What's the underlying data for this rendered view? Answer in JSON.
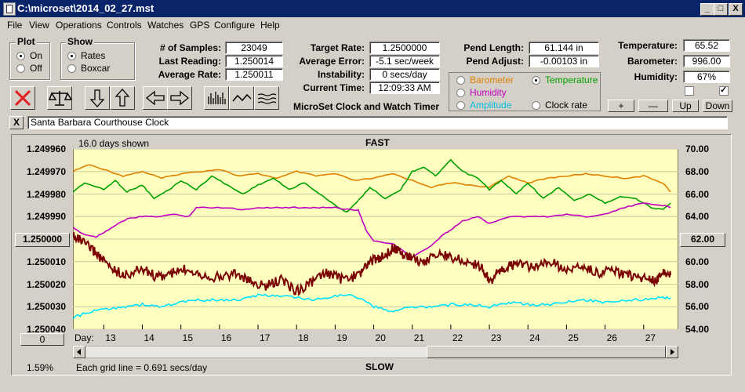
{
  "window": {
    "title": "C:\\microset\\2014_02_27.mst",
    "minimize": "_",
    "maximize": "□",
    "close": "X"
  },
  "menu": [
    "File",
    "View",
    "Operations",
    "Controls",
    "Watches",
    "GPS",
    "Configure",
    "Help"
  ],
  "plot_group": {
    "title": "Plot",
    "options": [
      {
        "label": "On",
        "selected": true
      },
      {
        "label": "Off",
        "selected": false
      }
    ]
  },
  "show_group": {
    "title": "Show",
    "options": [
      {
        "label": "Rates",
        "selected": true
      },
      {
        "label": "Boxcar",
        "selected": false
      }
    ]
  },
  "stats": {
    "samples_label": "# of Samples:",
    "samples": "23049",
    "last_label": "Last Reading:",
    "last": "1.250014",
    "avg_label": "Average Rate:",
    "avg": "1.250011"
  },
  "rates": {
    "target_label": "Target Rate:",
    "target": "1.2500000",
    "error_label": "Average Error:",
    "error": "-5.1 sec/week",
    "instab_label": "Instability:",
    "instab": "0 secs/day",
    "time_label": "Current Time:",
    "time": "12:09:33 AM",
    "caption": "MicroSet Clock and Watch Timer"
  },
  "pendulum": {
    "length_label": "Pend Length:",
    "length": "61.144 in",
    "adjust_label": "Pend Adjust:",
    "adjust": "-0.00103 in"
  },
  "series_select": {
    "barometer": "Barometer",
    "temperature": "Temperature",
    "humidity": "Humidity",
    "amplitude": "Amplitude",
    "clockrate": "Clock rate",
    "colors": {
      "barometer": "#e08000",
      "temperature": "#00a000",
      "humidity": "#c000c0",
      "amplitude": "#00c0e0",
      "clockrate": "#000000"
    }
  },
  "env": {
    "temp_label": "Temperature:",
    "temp": "65.52",
    "baro_label": "Barometer:",
    "baro": "996.00",
    "hum_label": "Humidity:",
    "hum": "67%"
  },
  "env_buttons": {
    "plus": "+",
    "minus": "—",
    "up": "Up",
    "down": "Down"
  },
  "toolbar_icons": [
    "clear-icon",
    "balance-icon",
    "arrow-down-icon",
    "arrow-up-icon",
    "arrow-left-icon",
    "arrow-right-icon",
    "bars-icon",
    "wave-icon",
    "lines-icon"
  ],
  "description": {
    "close": "X",
    "text": "Santa Barbara Courthouse Clock"
  },
  "chart": {
    "days_shown": "16.0 days shown",
    "top_label": "FAST",
    "bottom_label": "SLOW",
    "center_button": "1.250000",
    "right_button": "62.00",
    "left_bottom_button": "0",
    "percent": "1.59%",
    "grid_note": "Each grid line = 0.691 secs/day",
    "day_prefix": "Day:",
    "plot_bg": "#ffffc0"
  },
  "chart_data": {
    "type": "line",
    "x_label": "Day:",
    "x_ticks": [
      "13",
      "14",
      "15",
      "16",
      "17",
      "18",
      "19",
      "20",
      "21",
      "22",
      "23",
      "24",
      "25",
      "26",
      "27"
    ],
    "xlim": [
      12.2,
      27.9
    ],
    "y_left_ticks": [
      "1.249960",
      "1.249970",
      "1.249980",
      "1.249990",
      "1.250000",
      "1.250010",
      "1.250020",
      "1.250030",
      "1.250040"
    ],
    "y_left_lim": [
      1.24996,
      1.25004
    ],
    "y_left_inverted": true,
    "y_right_ticks": [
      "70.00",
      "68.00",
      "66.00",
      "64.00",
      "62.00",
      "60.00",
      "58.00",
      "56.00",
      "54.00"
    ],
    "y_right_lim": [
      54,
      70
    ],
    "grid": true,
    "series": [
      {
        "name": "Barometer",
        "color": "#e08000",
        "axis": "left",
        "x": [
          12.2,
          12.6,
          13,
          13.5,
          14,
          14.5,
          15,
          15.5,
          16,
          16.5,
          17,
          17.5,
          18,
          18.5,
          19,
          19.5,
          20,
          20.5,
          21,
          21.5,
          22,
          22.5,
          23,
          23.5,
          24,
          24.5,
          25,
          25.5,
          26,
          26.5,
          27,
          27.5,
          27.7
        ],
        "y": [
          1.24997,
          1.249967,
          1.249969,
          1.249972,
          1.24997,
          1.249973,
          1.249971,
          1.24997,
          1.249969,
          1.249972,
          1.249971,
          1.249973,
          1.24997,
          1.249972,
          1.249971,
          1.249974,
          1.249973,
          1.249971,
          1.249974,
          1.249977,
          1.249975,
          1.249976,
          1.249977,
          1.249972,
          1.249975,
          1.249973,
          1.249972,
          1.249971,
          1.249972,
          1.249973,
          1.249972,
          1.249975,
          1.249979
        ]
      },
      {
        "name": "Temperature",
        "color": "#00a000",
        "axis": "left",
        "x": [
          12.2,
          12.5,
          13,
          13.3,
          13.6,
          14,
          14.3,
          14.7,
          15,
          15.4,
          15.8,
          16.2,
          16.6,
          17,
          17.4,
          17.8,
          18.2,
          18.6,
          19,
          19.3,
          19.6,
          19.9,
          20.3,
          20.7,
          21,
          21.3,
          21.6,
          22,
          22.3,
          22.7,
          23,
          23.3,
          23.7,
          24,
          24.4,
          24.8,
          25.2,
          25.6,
          26,
          26.4,
          26.8,
          27.2,
          27.5,
          27.7
        ],
        "y": [
          1.249979,
          1.249975,
          1.249978,
          1.249974,
          1.249979,
          1.249976,
          1.249982,
          1.249978,
          1.249974,
          1.249978,
          1.249972,
          1.249976,
          1.24998,
          1.249976,
          1.249973,
          1.249978,
          1.249975,
          1.24998,
          1.249985,
          1.249988,
          1.249983,
          1.249977,
          1.249982,
          1.249978,
          1.24997,
          1.249968,
          1.249972,
          1.249965,
          1.24997,
          1.249973,
          1.249978,
          1.249974,
          1.24998,
          1.249975,
          1.249982,
          1.249977,
          1.249983,
          1.24998,
          1.249984,
          1.249981,
          1.249982,
          1.249986,
          1.249987,
          1.249984
        ]
      },
      {
        "name": "Humidity",
        "color": "#c000c0",
        "axis": "left",
        "x": [
          12.2,
          12.5,
          12.8,
          13,
          13.3,
          13.6,
          14,
          14.4,
          14.8,
          15.2,
          15.4,
          15.8,
          16.2,
          16.6,
          17,
          17.4,
          17.8,
          18.2,
          18.6,
          19,
          19.4,
          19.6,
          19.8,
          20,
          20.5,
          21,
          21.5,
          21.8,
          22,
          22.3,
          22.7,
          23,
          23.5,
          24,
          24.5,
          25,
          25.5,
          26,
          26.5,
          27,
          27.5,
          27.7
        ],
        "y": [
          1.249995,
          1.249998,
          1.249999,
          1.249997,
          1.249994,
          1.249991,
          1.24999,
          1.24999,
          1.249989,
          1.24999,
          1.249986,
          1.249986,
          1.249986,
          1.249987,
          1.249986,
          1.249986,
          1.249986,
          1.249986,
          1.249986,
          1.249986,
          1.249987,
          1.249987,
          1.249996,
          1.250001,
          1.250002,
          1.250008,
          1.250003,
          1.249998,
          1.249996,
          1.249992,
          1.24999,
          1.249993,
          1.24999,
          1.24999,
          1.24999,
          1.249989,
          1.24999,
          1.249989,
          1.249986,
          1.249984,
          1.249985,
          1.249986
        ]
      },
      {
        "name": "Clock rate",
        "color": "#7a0000",
        "axis": "left",
        "x": [
          12.2,
          12.5,
          12.8,
          13,
          13.3,
          13.6,
          14,
          14.4,
          14.8,
          15.2,
          15.6,
          16,
          16.4,
          16.8,
          17.2,
          17.6,
          18,
          18.4,
          18.8,
          19.2,
          19.6,
          19.9,
          20.2,
          20.5,
          20.8,
          21,
          21.3,
          21.6,
          22,
          22.4,
          22.8,
          23,
          23.2,
          23.5,
          23.8,
          24.2,
          24.6,
          25,
          25.4,
          25.8,
          26.2,
          26.6,
          27,
          27.3,
          27.5,
          27.7
        ],
        "y": [
          1.249998,
          1.250002,
          1.250006,
          1.25001,
          1.250014,
          1.250016,
          1.250013,
          1.250017,
          1.250015,
          1.250013,
          1.250016,
          1.250017,
          1.250015,
          1.250019,
          1.250021,
          1.250018,
          1.250023,
          1.250019,
          1.250015,
          1.250018,
          1.250016,
          1.25001,
          1.250008,
          1.250004,
          1.250007,
          1.250008,
          1.250011,
          1.250006,
          1.250008,
          1.25001,
          1.250012,
          1.250019,
          1.250015,
          1.250012,
          1.250011,
          1.250013,
          1.25001,
          1.250014,
          1.250012,
          1.250015,
          1.250014,
          1.250016,
          1.250017,
          1.250019,
          1.250015,
          1.250016
        ]
      },
      {
        "name": "Amplitude",
        "color": "#00e0ff",
        "axis": "left",
        "x": [
          12.2,
          12.5,
          13,
          13.5,
          14,
          14.5,
          15,
          15.5,
          16,
          16.5,
          17,
          17.5,
          18,
          18.5,
          19,
          19.5,
          20,
          20.5,
          21,
          21.5,
          22,
          22.5,
          23,
          23.5,
          24,
          24.5,
          25,
          25.5,
          26,
          26.5,
          27,
          27.5,
          27.7
        ],
        "y": [
          1.250035,
          1.250033,
          1.250031,
          1.25003,
          1.250029,
          1.25003,
          1.250028,
          1.250027,
          1.250027,
          1.250027,
          1.250025,
          1.250025,
          1.250026,
          1.250027,
          1.250025,
          1.250025,
          1.25003,
          1.250032,
          1.25003,
          1.25003,
          1.250029,
          1.250029,
          1.25003,
          1.250028,
          1.250029,
          1.250029,
          1.250028,
          1.250027,
          1.250028,
          1.250027,
          1.250027,
          1.250026,
          1.250026
        ]
      }
    ]
  }
}
